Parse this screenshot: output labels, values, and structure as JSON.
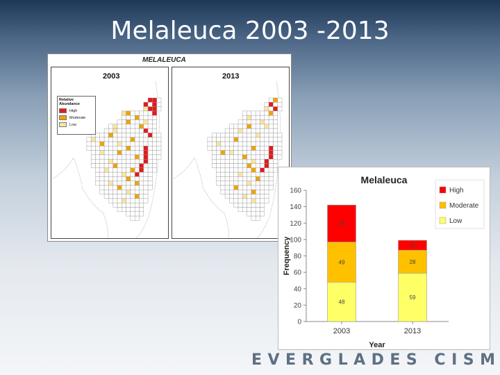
{
  "slide": {
    "title": "Melaleuca 2003 -2013"
  },
  "maps": {
    "heading": "MELALEUCA",
    "panels": [
      {
        "year": "2003"
      },
      {
        "year": "2013"
      }
    ],
    "legend": {
      "title_line1": "Relative",
      "title_line2": "Abundance",
      "items": [
        {
          "label": "High",
          "color": "#e31a1c"
        },
        {
          "label": "Moderate",
          "color": "#f0a400"
        },
        {
          "label": "Low",
          "color": "#fbe6a0"
        }
      ]
    }
  },
  "chart_data": {
    "type": "bar",
    "stacked": true,
    "title": "Melaleuca",
    "xlabel": "Year",
    "ylabel": "Frequency",
    "categories": [
      "2003",
      "2013"
    ],
    "ylim": [
      0,
      160
    ],
    "yticks": [
      "0",
      "20",
      "40",
      "60",
      "80",
      "100",
      "120",
      "140",
      "160"
    ],
    "series": [
      {
        "name": "Low",
        "color": "#ffff66",
        "values": [
          48,
          59
        ]
      },
      {
        "name": "Moderate",
        "color": "#ffc000",
        "values": [
          49,
          28
        ]
      },
      {
        "name": "High",
        "color": "#ff0000",
        "values": [
          45,
          12
        ]
      }
    ],
    "legend_order": [
      "High",
      "Moderate",
      "Low"
    ],
    "legend_position": "right",
    "grid": false
  },
  "footer": {
    "brand": "EVERGLADES CISMA"
  }
}
